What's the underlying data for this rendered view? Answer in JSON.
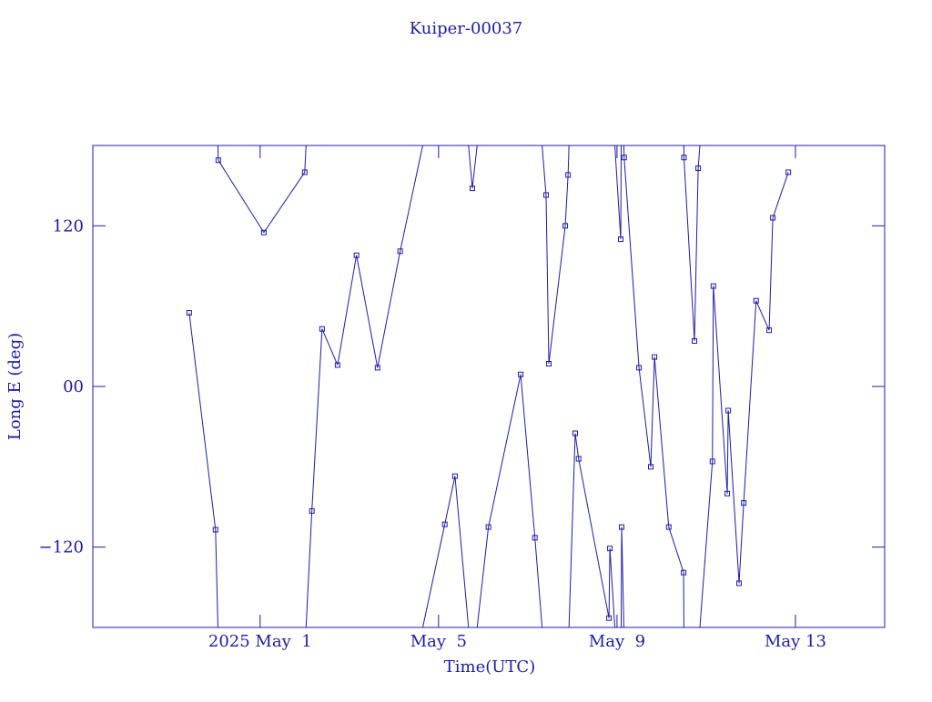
{
  "chart_data": {
    "type": "line",
    "title": "Kuiper-00037",
    "x_label": "Time(UTC)",
    "y_label": "Long E (deg)",
    "x": [
      "2025-04-29 09:50",
      "2025-04-30 00:00",
      "2025-04-30 01:30",
      "2025-05-01 02:00",
      "2025-05-02 00:00",
      "2025-05-02 03:50",
      "2025-05-02 09:20",
      "2025-05-02 17:40",
      "2025-05-03 03:50",
      "2025-05-03 15:10",
      "2025-05-04 03:20",
      "2025-05-05 03:20",
      "2025-05-05 08:50",
      "2025-05-05 18:10",
      "2025-05-06 02:50",
      "2025-05-06 20:10",
      "2025-05-07 03:50",
      "2025-05-07 09:50",
      "2025-05-07 11:20",
      "2025-05-07 20:10",
      "2025-05-07 21:40",
      "2025-05-08 01:30",
      "2025-05-08 03:20",
      "2025-05-08 19:40",
      "2025-05-08 20:10",
      "2025-05-09 02:00",
      "2025-05-09 02:30",
      "2025-05-09 03:50",
      "2025-05-09 11:50",
      "2025-05-09 18:10",
      "2025-05-09 20:10",
      "2025-05-10 03:50",
      "2025-05-10 11:50",
      "2025-05-10 12:00",
      "2025-05-10 17:40",
      "2025-05-10 19:40",
      "2025-05-11 03:20",
      "2025-05-11 03:50",
      "2025-05-11 11:20",
      "2025-05-11 11:50",
      "2025-05-11 17:40",
      "2025-05-11 20:10",
      "2025-05-12 02:50",
      "2025-05-12 09:50",
      "2025-05-12 11:50",
      "2025-05-12 20:10"
    ],
    "values": [
      55,
      -107,
      169,
      115,
      160,
      -93,
      43,
      16,
      98,
      14,
      101,
      -103,
      -67,
      148,
      -105,
      9,
      -113,
      143,
      17,
      120,
      158,
      -35,
      -54,
      -173,
      -121,
      110,
      -105,
      171,
      14,
      -60,
      22,
      -105,
      -139,
      171,
      34,
      163,
      -56,
      75,
      -80,
      -18,
      -147,
      -87,
      64,
      42,
      126,
      160
    ],
    "color": "#1c1ca8",
    "xlim": [
      "2025-04-27 06:00",
      "2025-05-15 00:00"
    ],
    "xticks": [
      {
        "value": "2025-05-01 00:00",
        "label": "2025 May  1"
      },
      {
        "value": "2025-05-05 00:00",
        "label": "May  5"
      },
      {
        "value": "2025-05-09 00:00",
        "label": "May  9"
      },
      {
        "value": "2025-05-13 00:00",
        "label": "May 13"
      }
    ],
    "ylim": [
      -180,
      180
    ],
    "yticks": [
      {
        "value": -120,
        "label": "−120"
      },
      {
        "value": 0,
        "label": "00"
      },
      120
    ]
  }
}
